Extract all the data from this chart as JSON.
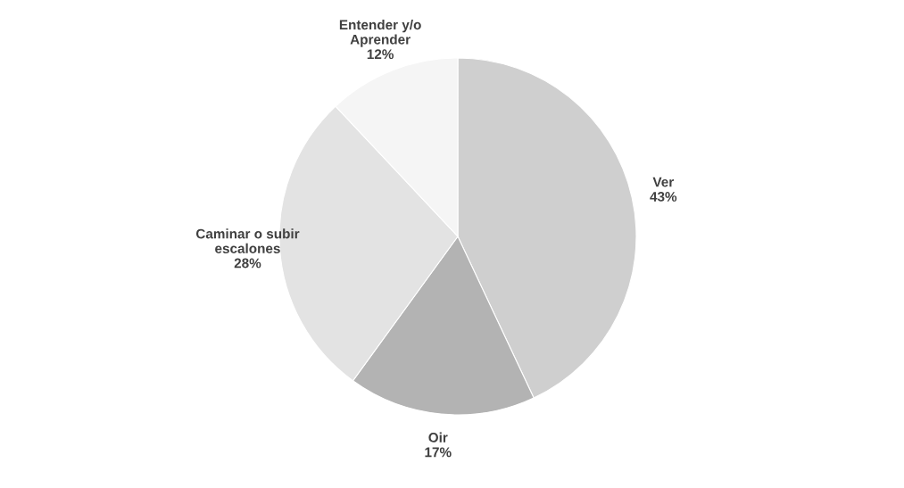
{
  "chart_data": {
    "type": "pie",
    "categories": [
      "Ver",
      "Oir",
      "Caminar o subir\nescalones",
      "Entender y/o\nAprender"
    ],
    "values": [
      43,
      17,
      28,
      12
    ],
    "value_labels": [
      "43%",
      "17%",
      "28%",
      "12%"
    ],
    "colors": [
      "#cfcfcf",
      "#b3b3b3",
      "#e3e3e3",
      "#f5f5f5"
    ]
  }
}
